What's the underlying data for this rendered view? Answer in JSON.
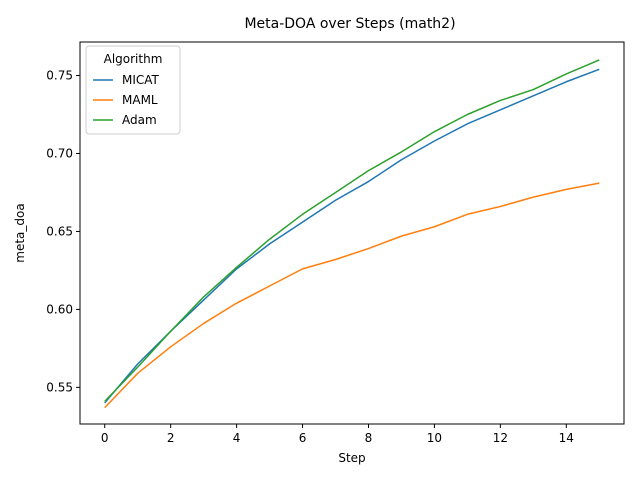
{
  "chart_data": {
    "type": "line",
    "title": "Meta-DOA over Steps (math2)",
    "xlabel": "Step",
    "ylabel": "meta_doa",
    "xlim": [
      -0.75,
      15.75
    ],
    "ylim": [
      0.5265,
      0.7715
    ],
    "xticks": [
      0,
      2,
      4,
      6,
      8,
      10,
      12,
      14
    ],
    "yticks": [
      0.55,
      0.6,
      0.65,
      0.7,
      0.75
    ],
    "ytick_labels": [
      "0.55",
      "0.60",
      "0.65",
      "0.70",
      "0.75"
    ],
    "grid": false,
    "legend": {
      "title": "Algorithm",
      "placement": "upper-left"
    },
    "x": [
      0,
      1,
      2,
      3,
      4,
      5,
      6,
      7,
      8,
      9,
      10,
      11,
      12,
      13,
      14,
      15
    ],
    "series": [
      {
        "name": "MICAT",
        "color": "#1f77b4",
        "values": [
          0.54,
          0.565,
          0.586,
          0.606,
          0.626,
          0.642,
          0.656,
          0.67,
          0.682,
          0.696,
          0.708,
          0.719,
          0.728,
          0.737,
          0.746,
          0.754
        ]
      },
      {
        "name": "MAML",
        "color": "#ff7f0e",
        "values": [
          0.537,
          0.559,
          0.576,
          0.591,
          0.604,
          0.615,
          0.626,
          0.632,
          0.639,
          0.647,
          0.653,
          0.661,
          0.666,
          0.672,
          0.677,
          0.681
        ]
      },
      {
        "name": "Adam",
        "color": "#2ca02c",
        "values": [
          0.541,
          0.563,
          0.586,
          0.608,
          0.627,
          0.645,
          0.661,
          0.675,
          0.689,
          0.701,
          0.714,
          0.725,
          0.734,
          0.741,
          0.751,
          0.76
        ]
      }
    ]
  }
}
